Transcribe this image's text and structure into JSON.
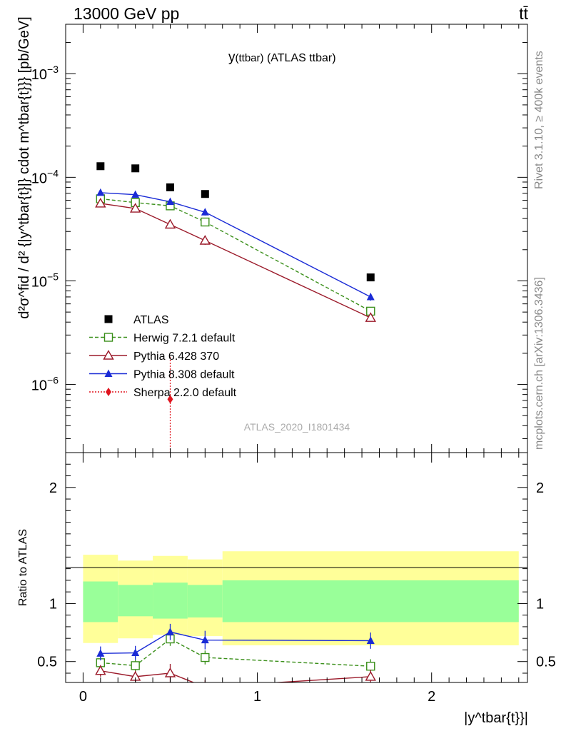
{
  "header": {
    "left": "13000 GeV pp",
    "right": "tt̄"
  },
  "side": {
    "rivet": "Rivet 3.1.10, ≥ 400k events",
    "mcplots": "mcplots.cern.ch [arXiv:1306.3436]"
  },
  "main_title": {
    "main": "y",
    "sub": "(ttbar)",
    "rest": " (ATLAS ttbar)"
  },
  "analysis_label": "ATLAS_2020_I1801434",
  "ylabel_top": "d²σ^fid / d² {|y^tbar{t}|} cdot m^tbar{t}}} [pb/GeV]",
  "ylabel_ratio": "Ratio to ATLAS",
  "xlabel": "|y^tbar{t}}|",
  "colors": {
    "data": "#000000",
    "herwig": "#3a8f1a",
    "pythia6": "#9b1a2a",
    "pythia8": "#1a2bd6",
    "sherpa": "#e0141e",
    "band_outer": "#ffff99",
    "band_inner": "#99ff99"
  },
  "chart_data": [
    {
      "type": "scatter",
      "panel": "main",
      "title": "y(ttbar) (ATLAS ttbar)",
      "yscale": "log",
      "xlim": [
        -0.1,
        2.55
      ],
      "ylim": [
        2.2e-07,
        0.003
      ],
      "y_ticks": [
        {
          "v": 1e-06,
          "base": "10",
          "exp": "−6"
        },
        {
          "v": 1e-05,
          "base": "10",
          "exp": "−5"
        },
        {
          "v": 0.0001,
          "base": "10",
          "exp": "−4"
        },
        {
          "v": 0.001,
          "base": "10",
          "exp": "−3"
        }
      ],
      "bins": [
        0.0,
        0.2,
        0.4,
        0.6,
        0.8,
        2.5
      ],
      "series": [
        {
          "name": "ATLAS",
          "key": "data",
          "marker": "square",
          "line": "none",
          "x": [
            0.1,
            0.3,
            0.5,
            0.7,
            1.65
          ],
          "y": [
            0.000128,
            0.000122,
            8e-05,
            6.9e-05,
            1.08e-05
          ]
        },
        {
          "name": "Herwig 7.2.1 default",
          "key": "herwig",
          "marker": "open-square",
          "line": "dashed",
          "x": [
            0.1,
            0.3,
            0.5,
            0.7,
            1.65
          ],
          "y": [
            6.2e-05,
            5.7e-05,
            5.3e-05,
            3.7e-05,
            5.1e-06
          ],
          "err": [
            0.05,
            0.05,
            0.05,
            0.07,
            0.08
          ]
        },
        {
          "name": "Pythia 6.428 370",
          "key": "pythia6",
          "marker": "open-triangle",
          "line": "solid",
          "x": [
            0.1,
            0.3,
            0.5,
            0.7,
            1.65
          ],
          "y": [
            5.6e-05,
            5e-05,
            3.5e-05,
            2.45e-05,
            4.4e-06
          ],
          "err": [
            0.06,
            0.06,
            0.07,
            0.09,
            0.08
          ]
        },
        {
          "name": "Pythia 8.308 default",
          "key": "pythia8",
          "marker": "filled-triangle",
          "line": "solid",
          "x": [
            0.1,
            0.3,
            0.5,
            0.7,
            1.65
          ],
          "y": [
            7.1e-05,
            6.8e-05,
            5.8e-05,
            4.6e-05,
            7e-06
          ],
          "err": [
            0.06,
            0.06,
            0.06,
            0.07,
            0.08
          ]
        },
        {
          "name": "Sherpa 2.2.0 default",
          "key": "sherpa",
          "marker": "diamond",
          "line": "dotted",
          "x": [
            0.5
          ],
          "y": [
            7.2e-07
          ]
        }
      ]
    },
    {
      "type": "scatter",
      "panel": "ratio",
      "ylabel": "Ratio to ATLAS",
      "xlabel": "|y^tbar{t}}|",
      "xlim": [
        -0.1,
        2.55
      ],
      "ylim": [
        0.32,
        2.3
      ],
      "x_ticks": [
        {
          "v": 0,
          "label": "0"
        },
        {
          "v": 1,
          "label": "1"
        },
        {
          "v": 2,
          "label": "2"
        }
      ],
      "y_ticks": [
        {
          "v": 0.5,
          "label": "0.5"
        },
        {
          "v": 1,
          "label": "1"
        },
        {
          "v": 2,
          "label": "2"
        }
      ],
      "bands": {
        "bins": [
          0.0,
          0.2,
          0.4,
          0.6,
          0.8,
          2.5
        ],
        "outer_lo": [
          0.66,
          0.7,
          0.73,
          0.72,
          0.64
        ],
        "outer_hi": [
          1.42,
          1.37,
          1.41,
          1.38,
          1.45
        ],
        "inner_lo": [
          0.84,
          0.89,
          0.87,
          0.88,
          0.84
        ],
        "inner_hi": [
          1.19,
          1.16,
          1.18,
          1.16,
          1.2
        ]
      },
      "series": [
        {
          "name": "Herwig 7.2.1 default",
          "key": "herwig",
          "marker": "open-square",
          "line": "dashed",
          "x": [
            0.1,
            0.3,
            0.5,
            0.7,
            1.65
          ],
          "y": [
            0.49,
            0.465,
            0.695,
            0.535,
            0.46
          ],
          "err": [
            0.05,
            0.05,
            0.06,
            0.06,
            0.06
          ]
        },
        {
          "name": "Pythia 6.428 370",
          "key": "pythia6",
          "marker": "open-triangle",
          "line": "solid",
          "x": [
            0.1,
            0.3,
            0.5,
            0.7,
            1.65
          ],
          "y": [
            0.42,
            0.37,
            0.4,
            0.28,
            0.37
          ],
          "err": [
            0.05,
            0.05,
            0.08,
            0.06,
            0.06
          ]
        },
        {
          "name": "Pythia 8.308 default",
          "key": "pythia8",
          "marker": "filled-triangle",
          "line": "solid",
          "x": [
            0.1,
            0.3,
            0.5,
            0.7,
            1.65
          ],
          "y": [
            0.57,
            0.575,
            0.755,
            0.685,
            0.68
          ],
          "err": [
            0.06,
            0.06,
            0.07,
            0.08,
            0.07
          ]
        }
      ]
    }
  ]
}
